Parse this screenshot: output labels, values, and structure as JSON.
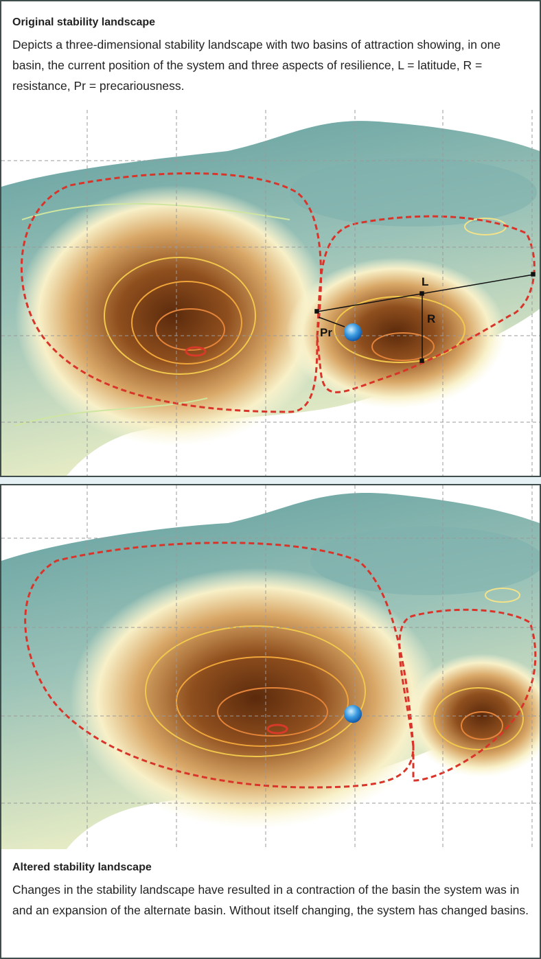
{
  "top_panel": {
    "title": "Original stability landscape",
    "description": "Depicts a three-dimensional stability landscape with two basins of attraction showing, in one basin, the current position of the system and three aspects of resilience, L = latitude, R = resistance, Pr = precariousness.",
    "labels": {
      "latitude": "L",
      "resistance": "R",
      "precariousness": "Pr"
    }
  },
  "bottom_panel": {
    "title": "Altered stability landscape",
    "description": "Changes in the stability landscape have resulted in a contraction of the basin the system was in and an expansion of the alternate basin. Without itself changing, the system has changed basins."
  }
}
